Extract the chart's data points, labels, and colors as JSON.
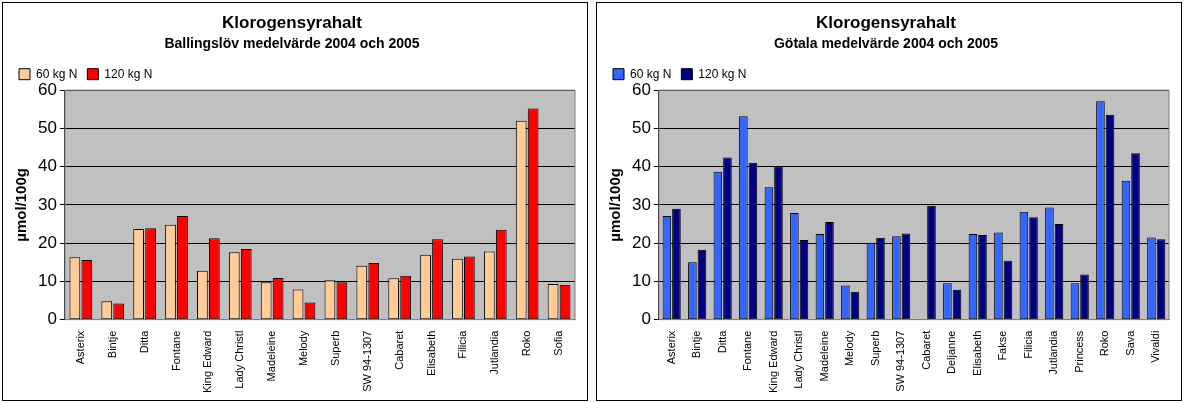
{
  "chart_data": [
    {
      "type": "bar",
      "title": "Klorogensyrahalt",
      "subtitle": "Ballingslöv medelvärde 2004 och 2005",
      "ylabel": "µmol/100g",
      "categories": [
        "Asterix",
        "Bintje",
        "Ditta",
        "Fontane",
        "King Edward",
        "Lady Christl",
        "Madeleine",
        "Melody",
        "Superb",
        "SW 94-1307",
        "Cabaret",
        "Elisabeth",
        "Filicia",
        "Jutlandia",
        "Roko",
        "Sofia"
      ],
      "series": [
        {
          "name": "60 kg N",
          "color": "#ffcc99",
          "values": [
            16.3,
            4.8,
            23.7,
            24.8,
            12.8,
            17.6,
            9.8,
            7.9,
            10.3,
            14.1,
            10.8,
            17.0,
            15.9,
            17.8,
            52.0,
            9.3
          ]
        },
        {
          "name": "120 kg N",
          "color": "#ff0000",
          "values": [
            15.6,
            4.2,
            23.9,
            27.1,
            21.3,
            18.5,
            10.9,
            4.5,
            9.8,
            14.8,
            11.5,
            21.0,
            16.5,
            23.5,
            55.2,
            9.1
          ]
        }
      ],
      "ylim": [
        0,
        60
      ],
      "yticks": [
        0,
        10,
        20,
        30,
        40,
        50,
        60
      ],
      "grid": "y",
      "legend": "top left"
    },
    {
      "type": "bar",
      "title": "Klorogensyrahalt",
      "subtitle": "Götala medelvärde 2004 och 2005",
      "ylabel": "µmol/100g",
      "categories": [
        "Asterix",
        "Bintje",
        "Ditta",
        "Fontane",
        "King Edward",
        "Lady Christl",
        "Madeleine",
        "Melody",
        "Superb",
        "SW 94-1307",
        "Cabaret",
        "Deljanne",
        "Elisabeth",
        "Fakse",
        "Filicia",
        "Jutlandia",
        "Princess",
        "Roko",
        "Sava",
        "Vivaldi"
      ],
      "series": [
        {
          "name": "60 kg N",
          "color": "#3366ff",
          "values": [
            27.1,
            15.0,
            38.7,
            53.2,
            34.6,
            27.9,
            22.4,
            8.9,
            20.1,
            21.8,
            null,
            9.5,
            22.4,
            22.8,
            28.2,
            29.3,
            9.5,
            57.1,
            36.3,
            21.5
          ]
        },
        {
          "name": "120 kg N",
          "color": "#000080",
          "values": [
            29.0,
            18.3,
            42.4,
            41.0,
            40.1,
            20.8,
            25.5,
            7.3,
            21.4,
            22.5,
            29.8,
            7.8,
            22.1,
            15.4,
            26.8,
            25.0,
            11.8,
            53.6,
            43.5,
            21.0
          ]
        }
      ],
      "ylim": [
        0,
        60
      ],
      "yticks": [
        0,
        10,
        20,
        30,
        40,
        50,
        60
      ],
      "grid": "y",
      "legend": "top left"
    }
  ]
}
